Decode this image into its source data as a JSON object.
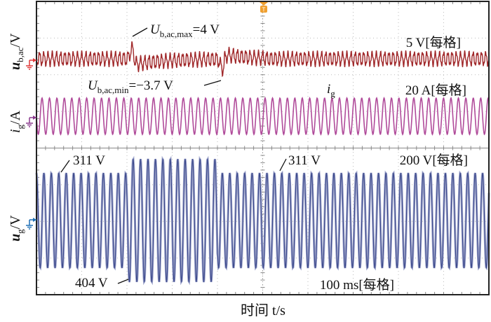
{
  "chart_data": {
    "type": "line",
    "title": "",
    "xlabel": "时间 t/s",
    "time_scale": "100 ms[每格]",
    "x_divisions": 10,
    "y_divisions": 8,
    "grid": true,
    "trigger_marker": "T",
    "series": [
      {
        "name": "u_b,ac",
        "ylabel_main": "u",
        "ylabel_sub": "b,ac",
        "ylabel_unit": "/V",
        "scale": "5 V[每格]",
        "color": "#a0282a",
        "ground_color": "#e03a3a",
        "steady_amplitude_V": 2.0,
        "max_V": 4,
        "min_V": -3.7,
        "annotations": [
          {
            "main": "U",
            "sub": "b,ac,max",
            "text": "=4 V"
          },
          {
            "main": "U",
            "sub": "b,ac,min",
            "text": "=−3.7 V"
          }
        ]
      },
      {
        "name": "i_g",
        "ylabel_main": "i",
        "ylabel_sub": "g",
        "ylabel_unit": "/A",
        "scale": "20 A[每格]",
        "color": "#b04b9a",
        "ground_color": "#8a3a8e",
        "inline_label_main": "i",
        "inline_label_sub": "g"
      },
      {
        "name": "u_g",
        "ylabel_main": "u",
        "ylabel_sub": "g",
        "ylabel_unit": "/V",
        "scale": "200 V[每格]",
        "color": "#3d4a8c",
        "ground_color": "#1f6fb5",
        "amplitude_normal_V": 311,
        "amplitude_swell_V": 404,
        "annotations": [
          "311 V",
          "404 V",
          "311 V"
        ]
      }
    ]
  }
}
